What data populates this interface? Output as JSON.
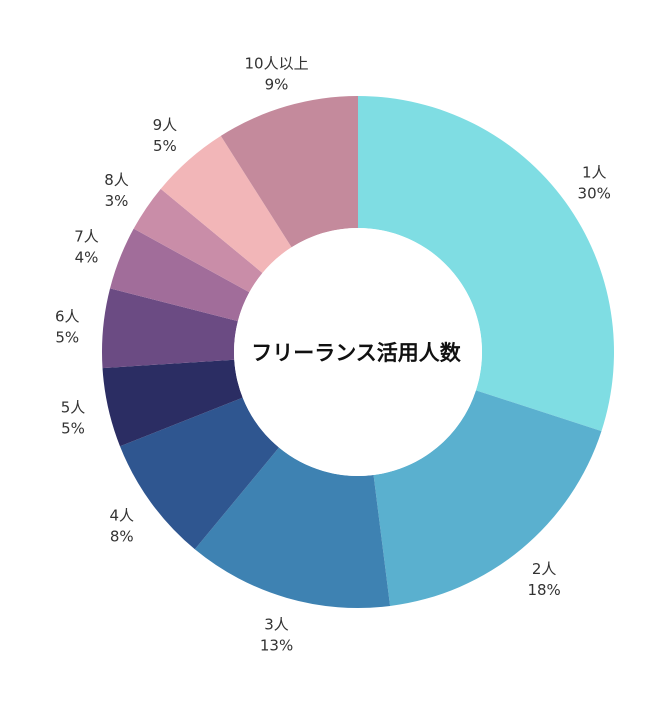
{
  "chart_data": {
    "type": "pie",
    "title": "フリーランス活用人数",
    "donut": true,
    "start_angle": "12 o'clock",
    "direction": "clockwise",
    "legend": "none",
    "slices": [
      {
        "name": "1人",
        "value": 30,
        "value_label": "30%",
        "color": "#7fdde3"
      },
      {
        "name": "2人",
        "value": 18,
        "value_label": "18%",
        "color": "#5ab0cf"
      },
      {
        "name": "3人",
        "value": 13,
        "value_label": "13%",
        "color": "#3e82b2"
      },
      {
        "name": "4人",
        "value": 8,
        "value_label": "8%",
        "color": "#2f5690"
      },
      {
        "name": "5人",
        "value": 5,
        "value_label": "5%",
        "color": "#2b2d63"
      },
      {
        "name": "6人",
        "value": 5,
        "value_label": "5%",
        "color": "#6b4b83"
      },
      {
        "name": "7人",
        "value": 4,
        "value_label": "4%",
        "color": "#a16d9a"
      },
      {
        "name": "8人",
        "value": 3,
        "value_label": "3%",
        "color": "#c98da8"
      },
      {
        "name": "9人",
        "value": 5,
        "value_label": "5%",
        "color": "#f2b6b8"
      },
      {
        "name": "10人以上",
        "value": 9,
        "value_label": "9%",
        "color": "#c48a9c"
      }
    ]
  }
}
